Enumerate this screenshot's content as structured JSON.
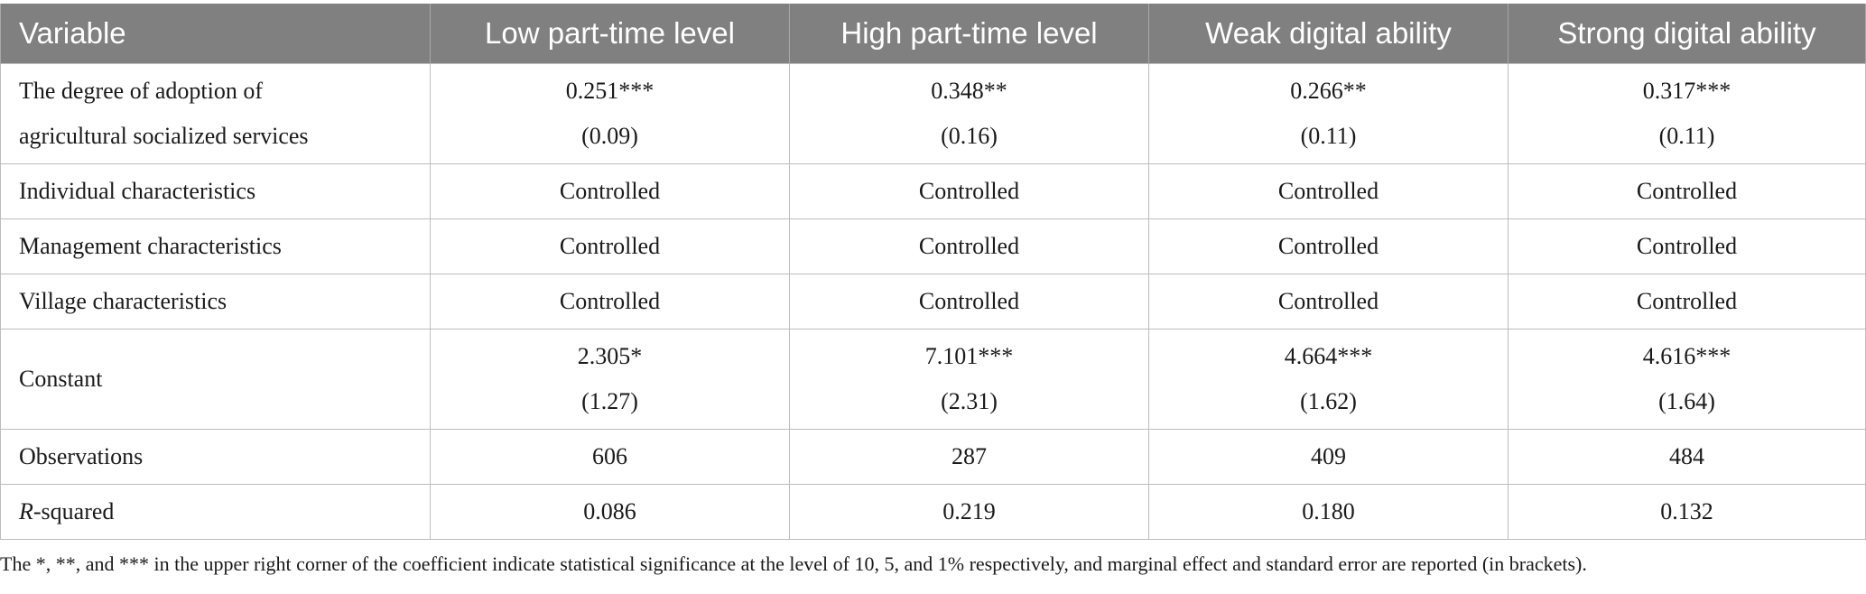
{
  "table": {
    "headers": [
      "Variable",
      "Low part-time level",
      "High part-time level",
      "Weak digital ability",
      "Strong digital ability"
    ],
    "rows": [
      {
        "label_lines": [
          "The degree of adoption of",
          "agricultural socialized services"
        ],
        "cells": [
          [
            "0.251***",
            "(0.09)"
          ],
          [
            "0.348**",
            "(0.16)"
          ],
          [
            "0.266**",
            "(0.11)"
          ],
          [
            "0.317***",
            "(0.11)"
          ]
        ]
      },
      {
        "label": "Individual characteristics",
        "cells": [
          "Controlled",
          "Controlled",
          "Controlled",
          "Controlled"
        ]
      },
      {
        "label": "Management characteristics",
        "cells": [
          "Controlled",
          "Controlled",
          "Controlled",
          "Controlled"
        ]
      },
      {
        "label": "Village characteristics",
        "cells": [
          "Controlled",
          "Controlled",
          "Controlled",
          "Controlled"
        ]
      },
      {
        "label": "Constant",
        "cells": [
          [
            "2.305*",
            "(1.27)"
          ],
          [
            "7.101***",
            "(2.31)"
          ],
          [
            "4.664***",
            "(1.62)"
          ],
          [
            "4.616***",
            "(1.64)"
          ]
        ]
      },
      {
        "label": "Observations",
        "cells": [
          "606",
          "287",
          "409",
          "484"
        ]
      },
      {
        "label_italic": "R",
        "label_rest": "-squared",
        "cells": [
          "0.086",
          "0.219",
          "0.180",
          "0.132"
        ]
      }
    ]
  },
  "footnote": "The *, **, and *** in the upper right corner of the coefficient indicate statistical significance at the level of 10, 5, and 1% respectively, and marginal effect and standard error are reported (in brackets)."
}
